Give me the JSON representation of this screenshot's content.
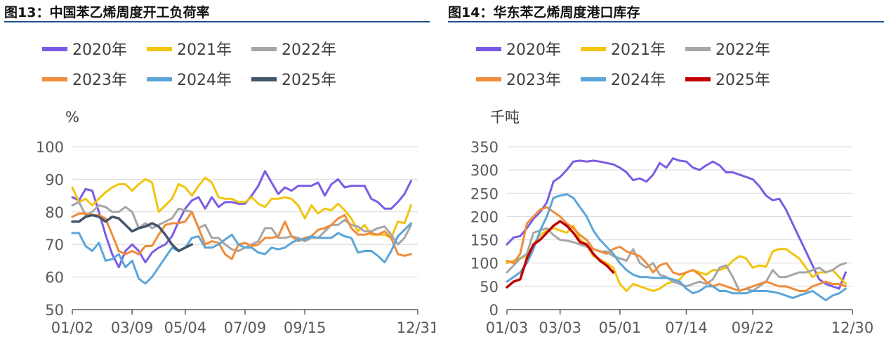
{
  "titles": {
    "left": "图13：中国苯乙烯周度开工负荷率",
    "right": "图14：华东苯乙烯周度港口库存"
  },
  "chart_data": [
    {
      "type": "line",
      "unit": "%",
      "ylim": [
        50,
        100
      ],
      "yticks": [
        50,
        60,
        70,
        80,
        90,
        100
      ],
      "xticks": [
        "01/02",
        "03/09",
        "05/04",
        "07/09",
        "09/15",
        "12/31"
      ],
      "xtick_weeks": [
        0,
        9,
        17,
        26,
        35,
        52
      ],
      "weeks": 52,
      "grid": true,
      "legend_position": "top",
      "series": [
        {
          "name": "2020年",
          "color": "#7b5be6",
          "values": [
            84.5,
            83.5,
            87,
            86.5,
            80,
            73,
            67,
            63,
            68,
            70,
            68,
            64.5,
            67.5,
            69,
            70,
            72.5,
            77,
            81,
            83.5,
            84.5,
            81,
            84.5,
            81.5,
            83,
            83,
            82.5,
            82.5,
            85,
            88,
            92.5,
            89,
            85.5,
            87.5,
            86.5,
            88,
            88,
            88,
            89,
            85,
            88.5,
            90,
            87.5,
            88,
            88,
            88,
            84,
            83,
            81,
            81,
            83,
            85.5,
            89.5
          ]
        },
        {
          "name": "2021年",
          "color": "#f2c40f",
          "values": [
            87.5,
            83,
            84,
            82,
            84,
            86,
            87.5,
            88.5,
            88.5,
            86.5,
            88.5,
            90,
            89,
            80,
            82,
            84,
            88.5,
            87.5,
            85,
            88,
            90.5,
            89,
            84.5,
            84,
            84,
            83,
            83,
            84.5,
            82.5,
            81.5,
            84,
            84,
            84.5,
            84,
            82,
            78,
            82,
            79.5,
            81,
            80.5,
            82.5,
            80.5,
            78,
            74,
            76,
            73,
            73,
            73,
            72,
            77,
            76.5,
            82
          ]
        },
        {
          "name": "2022年",
          "color": "#a6a6a6",
          "values": [
            82,
            83,
            79,
            80,
            82,
            81.5,
            80,
            80,
            81.5,
            80,
            75,
            76.5,
            75,
            76,
            77,
            78,
            81,
            80.5,
            80,
            75,
            76,
            72,
            72,
            70,
            68.5,
            68,
            69,
            70,
            71,
            75,
            75,
            72,
            72,
            72.5,
            72,
            71,
            72,
            72,
            74,
            76,
            76,
            77.5,
            76,
            75.5,
            74,
            74,
            75,
            75.5,
            73,
            70,
            72,
            76
          ]
        },
        {
          "name": "2023年",
          "color": "#f08c3a",
          "values": [
            78.5,
            79.5,
            79.5,
            79,
            79,
            78,
            73,
            68,
            67,
            68,
            67,
            69.5,
            69.5,
            73,
            76,
            76.5,
            76.5,
            77,
            80,
            75,
            70,
            71,
            70.5,
            67,
            65.5,
            70,
            70.5,
            69.5,
            70,
            72,
            72,
            72.5,
            77,
            72.5,
            71,
            72,
            72.5,
            74.5,
            75,
            76,
            78,
            79,
            75,
            73,
            73,
            73.5,
            73,
            74,
            72,
            67,
            66.5,
            67
          ]
        },
        {
          "name": "2024年",
          "color": "#5ba5d9",
          "values": [
            73.5,
            73.5,
            69.5,
            68,
            70.5,
            65,
            65.5,
            67,
            63,
            65,
            59.5,
            58,
            60,
            63,
            66,
            69,
            68,
            69,
            72,
            72.5,
            69,
            69,
            70,
            71.5,
            73,
            70,
            69,
            69,
            67.5,
            67,
            69,
            68.5,
            69,
            70.5,
            71.5,
            71.5,
            72.5,
            72,
            72,
            72,
            73.5,
            72.5,
            72,
            67.5,
            68,
            68,
            66.5,
            64.5,
            68,
            72.5,
            74.5,
            76.5
          ]
        },
        {
          "name": "2025年",
          "color": "#44546a",
          "values": [
            77,
            77,
            78.5,
            79,
            78.5,
            77,
            78.5,
            78,
            76,
            74,
            75,
            75.5,
            76.5,
            75.5,
            73,
            70,
            68,
            69,
            70
          ]
        }
      ]
    },
    {
      "type": "line",
      "unit": "千吨",
      "ylim": [
        0,
        350
      ],
      "yticks": [
        0,
        50,
        100,
        150,
        200,
        250,
        300,
        350
      ],
      "xticks": [
        "01/03",
        "03/03",
        "05/01",
        "07/14",
        "09/22",
        "12/30"
      ],
      "xtick_weeks": [
        0,
        8,
        17,
        27,
        37,
        52
      ],
      "weeks": 52,
      "grid": true,
      "legend_position": "top",
      "series": [
        {
          "name": "2020年",
          "color": "#7b5be6",
          "values": [
            140,
            155,
            158,
            175,
            195,
            210,
            230,
            275,
            285,
            300,
            318,
            320,
            318,
            320,
            318,
            315,
            312,
            305,
            295,
            278,
            282,
            275,
            290,
            315,
            305,
            325,
            320,
            318,
            305,
            300,
            310,
            318,
            310,
            295,
            295,
            290,
            285,
            280,
            265,
            245,
            235,
            238,
            215,
            185,
            155,
            125,
            95,
            65,
            55,
            50,
            45,
            80
          ]
        },
        {
          "name": "2021年",
          "color": "#f2c40f",
          "values": [
            100,
            105,
            110,
            115,
            140,
            160,
            170,
            175,
            170,
            165,
            180,
            150,
            140,
            115,
            108,
            100,
            90,
            55,
            40,
            55,
            50,
            45,
            40,
            45,
            55,
            60,
            65,
            80,
            85,
            80,
            75,
            85,
            85,
            90,
            105,
            115,
            110,
            90,
            95,
            92,
            125,
            130,
            130,
            120,
            110,
            90,
            70,
            80,
            80,
            85,
            70,
            55
          ]
        },
        {
          "name": "2022年",
          "color": "#a6a6a6",
          "values": [
            80,
            95,
            110,
            120,
            165,
            170,
            175,
            160,
            150,
            148,
            145,
            140,
            135,
            130,
            125,
            125,
            115,
            110,
            105,
            130,
            100,
            90,
            100,
            75,
            70,
            60,
            55,
            50,
            55,
            60,
            55,
            65,
            90,
            95,
            70,
            40,
            45,
            40,
            50,
            60,
            85,
            70,
            70,
            75,
            80,
            80,
            85,
            90,
            80,
            85,
            95,
            100
          ]
        },
        {
          "name": "2023年",
          "color": "#f08c3a",
          "values": [
            105,
            100,
            120,
            185,
            200,
            215,
            220,
            210,
            200,
            185,
            175,
            160,
            150,
            130,
            125,
            120,
            130,
            135,
            125,
            120,
            115,
            100,
            80,
            95,
            100,
            80,
            75,
            80,
            85,
            75,
            60,
            50,
            55,
            50,
            45,
            40,
            45,
            50,
            55,
            60,
            55,
            50,
            50,
            45,
            40,
            40,
            50,
            55,
            60,
            55,
            55,
            50
          ]
        },
        {
          "name": "2024年",
          "color": "#5ba5d9",
          "values": [
            60,
            70,
            80,
            100,
            130,
            170,
            200,
            240,
            245,
            248,
            240,
            220,
            200,
            170,
            150,
            135,
            120,
            100,
            85,
            75,
            70,
            70,
            68,
            68,
            68,
            65,
            60,
            45,
            35,
            40,
            50,
            50,
            40,
            40,
            35,
            35,
            35,
            40,
            40,
            40,
            38,
            35,
            30,
            25,
            30,
            35,
            40,
            30,
            20,
            30,
            35,
            45
          ]
        },
        {
          "name": "2025年",
          "color": "#c00000",
          "values": [
            48,
            60,
            65,
            110,
            140,
            150,
            165,
            180,
            190,
            180,
            165,
            145,
            140,
            120,
            105,
            95,
            80
          ]
        }
      ]
    }
  ]
}
